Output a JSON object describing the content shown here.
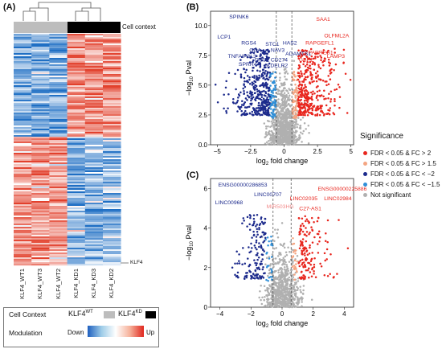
{
  "panels": {
    "a": "(A)",
    "b": "(B)",
    "c": "(C)"
  },
  "heatmap": {
    "cell_context_label": "Cell context",
    "columns": [
      "KLF4_WT1",
      "KLF4_WT3",
      "KLF4_WT2",
      "KLF4_KD1",
      "KLF4_KD3",
      "KLF4_KD2"
    ],
    "gene_marker": "KLF4",
    "colors": {
      "wt": "#bdbdbd",
      "kd": "#000000",
      "down": "#2a76c8",
      "up": "#e8261e"
    }
  },
  "bottom_legend": {
    "cell_context": "Cell Context",
    "wt_main": "KLF4",
    "wt_sup": "WT",
    "kd_main": "KLF4",
    "kd_sup": "KD",
    "modulation": "Modulation",
    "down": "Down",
    "up": "Up"
  },
  "significance_legend": {
    "title": "Significance",
    "items": [
      {
        "label": "FDR < 0.05 & FC > 2",
        "color": "#e8261e"
      },
      {
        "label": "FDR < 0.05 & FC > 1.5",
        "color": "#f4a582"
      },
      {
        "label": "FDR < 0.05 & FC < −2",
        "color": "#1c2a8c"
      },
      {
        "label": "FDR < 0.05 & FC < −1.5",
        "color": "#2f8fd8"
      },
      {
        "label": "Not significant",
        "color": "#b0b0b0"
      }
    ]
  },
  "chart_data": [
    {
      "type": "scatter",
      "xlabel_main": "log",
      "xlabel_sub": "2",
      "xlabel_rest": " fold change",
      "ylabel_main": "−log",
      "ylabel_sub": "10",
      "ylabel_rest": " Pval",
      "xlim": [
        -5.5,
        5.2
      ],
      "ylim": [
        0,
        11.2
      ],
      "xticks": [
        -5,
        -2.5,
        0,
        2.5,
        5
      ],
      "xtick_labels": [
        "−5",
        "−2.5",
        "0",
        "2.5",
        "5"
      ],
      "yticks": [
        0,
        2.5,
        5,
        7.5,
        10
      ],
      "ytick_labels": [
        "0.0",
        "2.5",
        "5.0",
        "7.5",
        "10.0"
      ],
      "thresholds_x": [
        -0.58,
        0.58
      ],
      "labels": [
        {
          "text": "SPINK6",
          "x": -4.1,
          "y": 10.6,
          "color": "blue"
        },
        {
          "text": "LCP1",
          "x": -5.0,
          "y": 8.9,
          "color": "blue"
        },
        {
          "text": "RGS4",
          "x": -3.2,
          "y": 8.4,
          "color": "blue"
        },
        {
          "text": "GDA",
          "x": -2.6,
          "y": 7.8,
          "color": "blue"
        },
        {
          "text": "TNFAIP8L3",
          "x": -4.2,
          "y": 7.3,
          "color": "blue"
        },
        {
          "text": "DSG1",
          "x": -2.2,
          "y": 7.0,
          "color": "blue"
        },
        {
          "text": "SPRR4",
          "x": -3.4,
          "y": 6.6,
          "color": "blue"
        },
        {
          "text": "STC1",
          "x": -1.4,
          "y": 8.3,
          "color": "blue"
        },
        {
          "text": "NAV3",
          "x": -1.0,
          "y": 7.8,
          "color": "blue"
        },
        {
          "text": "HAS2",
          "x": -0.1,
          "y": 8.4,
          "color": "blue"
        },
        {
          "text": "CD274",
          "x": -1.0,
          "y": 7.0,
          "color": "blue"
        },
        {
          "text": "ADAMTS1",
          "x": 0.1,
          "y": 7.5,
          "color": "blue"
        },
        {
          "text": "KDELR2",
          "x": -1.3,
          "y": 6.5,
          "color": "blue"
        },
        {
          "text": "SAA1",
          "x": 2.4,
          "y": 10.4,
          "color": "red"
        },
        {
          "text": "OLFML2A",
          "x": 3.0,
          "y": 9.0,
          "color": "red"
        },
        {
          "text": "RAPGEFL1",
          "x": 1.6,
          "y": 8.4,
          "color": "red"
        },
        {
          "text": "PARRES1",
          "x": 1.8,
          "y": 7.6,
          "color": "red"
        },
        {
          "text": "GBP2",
          "x": 1.1,
          "y": 7.0,
          "color": "red"
        },
        {
          "text": "LAMP3",
          "x": 3.2,
          "y": 7.3,
          "color": "red"
        }
      ]
    },
    {
      "type": "scatter",
      "xlabel_main": "log",
      "xlabel_sub": "2",
      "xlabel_rest": " fold change",
      "ylabel_main": "−log",
      "ylabel_sub": "10",
      "ylabel_rest": " Pval",
      "xlim": [
        -4.6,
        4.6
      ],
      "ylim": [
        0,
        6.5
      ],
      "xticks": [
        -4,
        -2,
        0,
        2,
        4
      ],
      "xtick_labels": [
        "−4",
        "−2",
        "0",
        "2",
        "4"
      ],
      "yticks": [
        0,
        2,
        4,
        6
      ],
      "ytick_labels": [
        "0",
        "2",
        "4",
        "6"
      ],
      "thresholds_x": [
        -0.58,
        0.58
      ],
      "labels": [
        {
          "text": "ENSG00000286853",
          "x": -4.1,
          "y": 6.1,
          "color": "blue"
        },
        {
          "text": "LINC00968",
          "x": -4.3,
          "y": 5.2,
          "color": "blue"
        },
        {
          "text": "LINC00707",
          "x": -1.8,
          "y": 5.6,
          "color": "blue"
        },
        {
          "text": "MIR503HG",
          "x": -1.0,
          "y": 5.0,
          "color": "pink"
        },
        {
          "text": "LINC02035",
          "x": 0.5,
          "y": 5.4,
          "color": "red"
        },
        {
          "text": "C27-AS1",
          "x": 1.1,
          "y": 4.9,
          "color": "red"
        },
        {
          "text": "ENSG00000225886",
          "x": 2.3,
          "y": 5.9,
          "color": "red"
        },
        {
          "text": "LINC02984",
          "x": 2.7,
          "y": 5.4,
          "color": "red"
        }
      ]
    }
  ]
}
